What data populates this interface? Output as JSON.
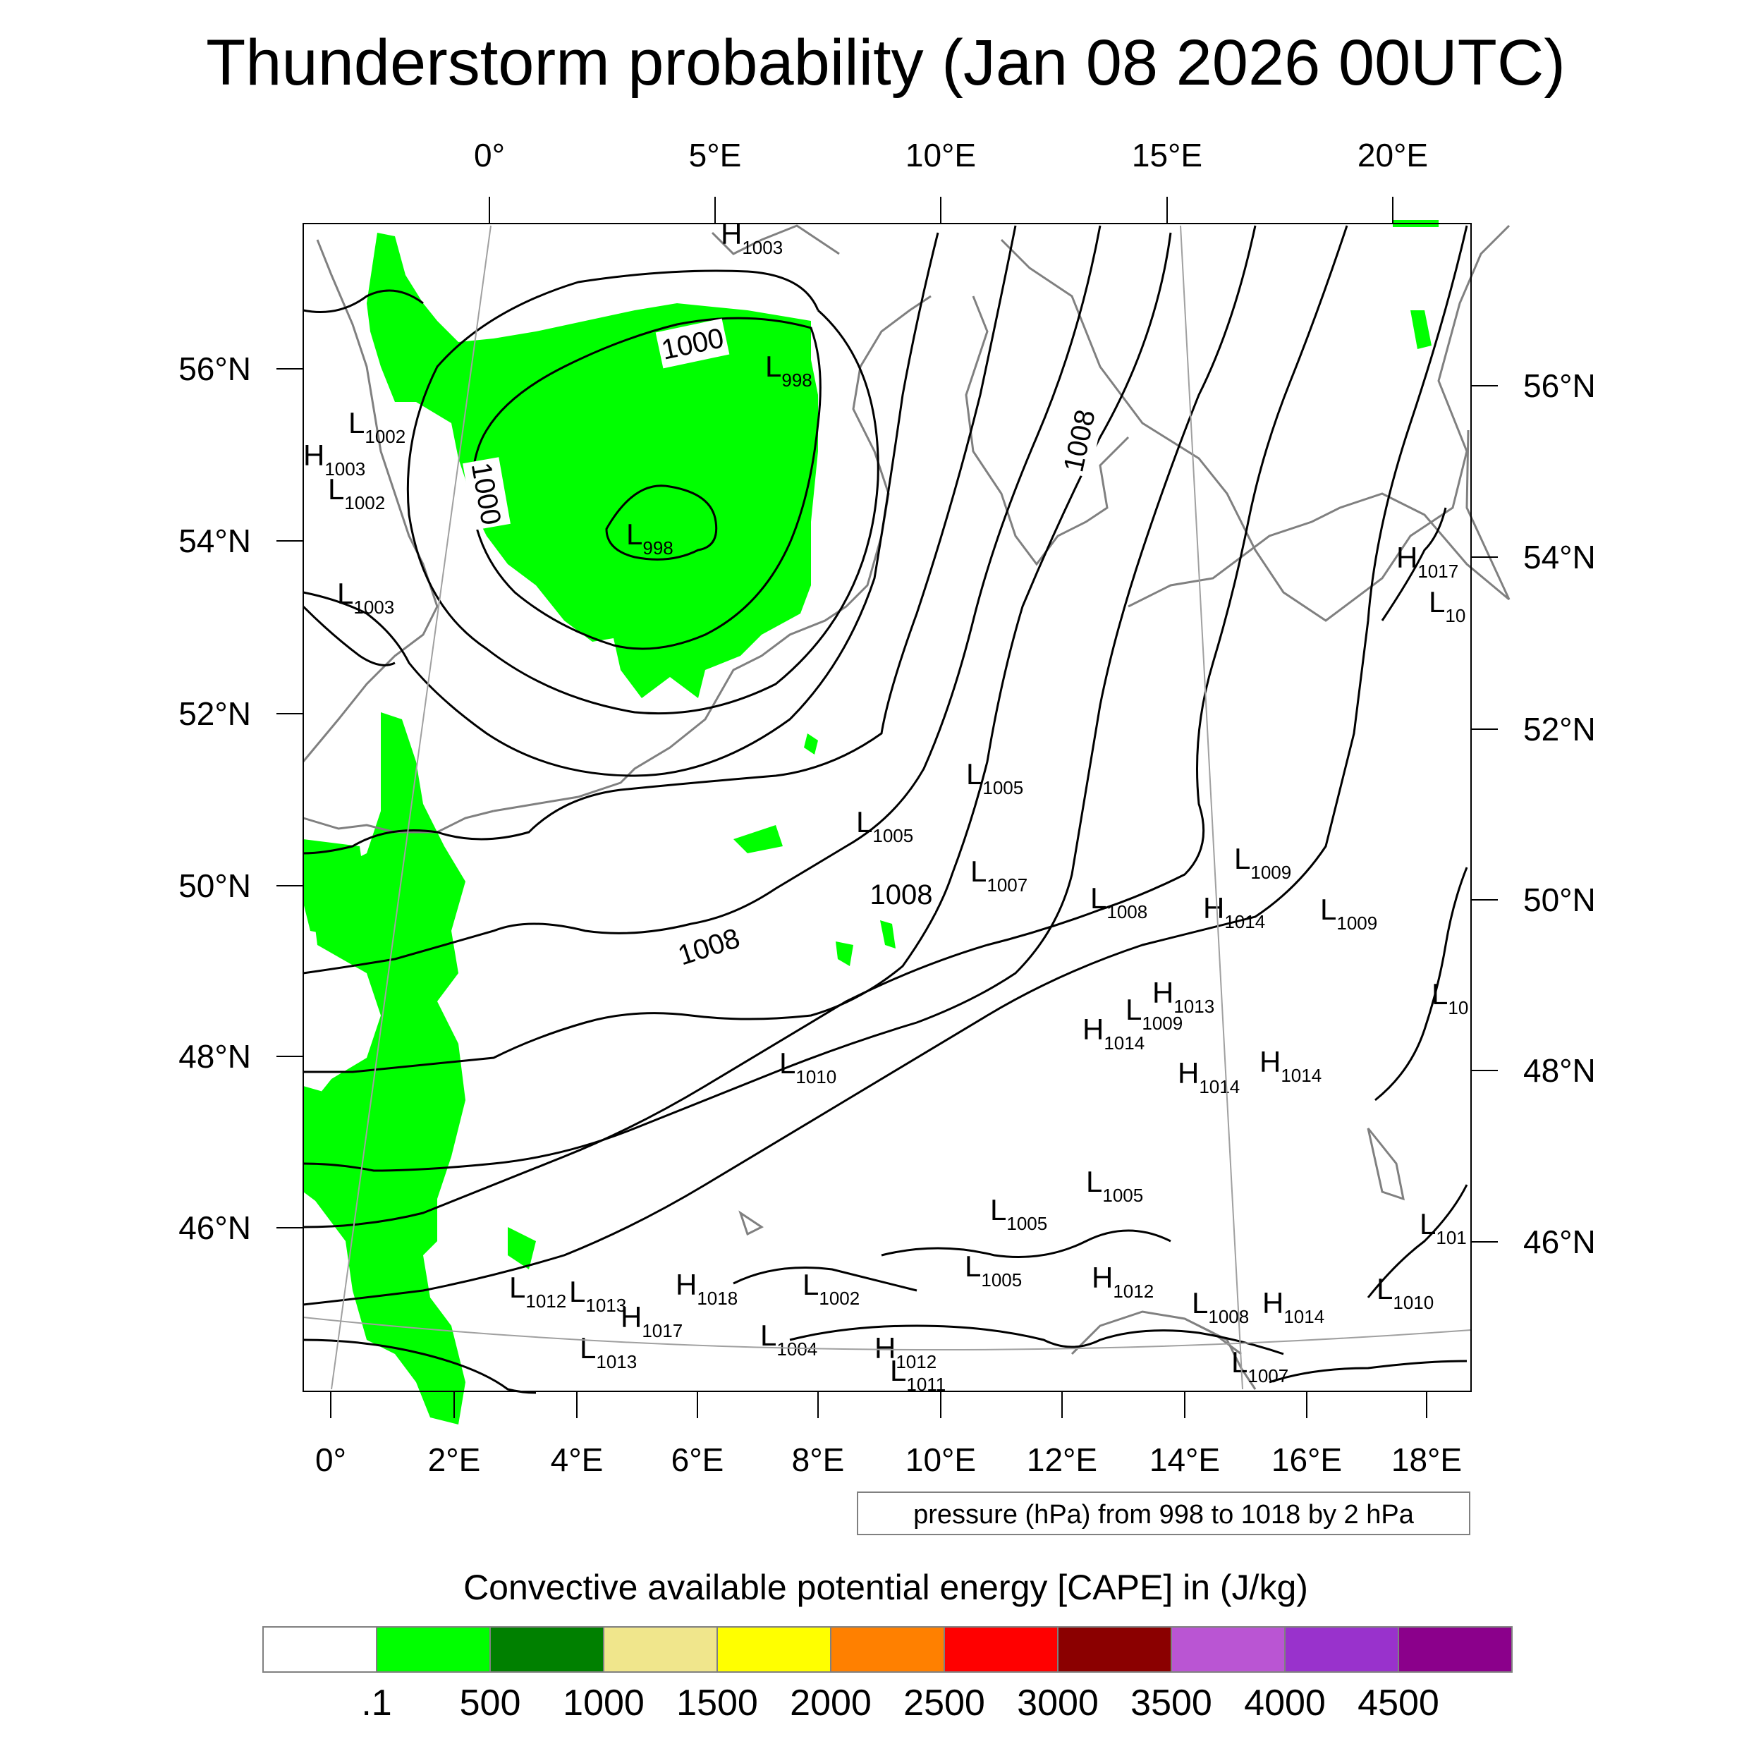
{
  "title": "Thunderstorm probability (Jan 08 2026 00UTC)",
  "top_lon_labels": [
    "0°",
    "5°E",
    "10°E",
    "15°E",
    "20°E"
  ],
  "bottom_lon_labels": [
    "0°",
    "2°E",
    "4°E",
    "6°E",
    "8°E",
    "10°E",
    "12°E",
    "14°E",
    "16°E",
    "18°E"
  ],
  "left_lat_labels": [
    "56°N",
    "54°N",
    "52°N",
    "50°N",
    "48°N",
    "46°N"
  ],
  "right_lat_labels": [
    "56°N",
    "54°N",
    "52°N",
    "50°N",
    "48°N",
    "46°N"
  ],
  "isobar_labels": [
    "1000",
    "1000",
    "1008",
    "1008",
    "1008"
  ],
  "pressure_centers": [
    {
      "t": "H",
      "v": "1003"
    },
    {
      "t": "L",
      "v": "998"
    },
    {
      "t": "L",
      "v": "1002"
    },
    {
      "t": "H",
      "v": "1003"
    },
    {
      "t": "L",
      "v": "1002"
    },
    {
      "t": "L",
      "v": "998"
    },
    {
      "t": "L",
      "v": "1003"
    },
    {
      "t": "H",
      "v": "1017"
    },
    {
      "t": "L",
      "v": "10"
    },
    {
      "t": "L",
      "v": "1005"
    },
    {
      "t": "L",
      "v": "1005"
    },
    {
      "t": "L",
      "v": "1007"
    },
    {
      "t": "L",
      "v": "1008"
    },
    {
      "t": "L",
      "v": "1009"
    },
    {
      "t": "H",
      "v": "1014"
    },
    {
      "t": "L",
      "v": "1009"
    },
    {
      "t": "H",
      "v": "1013"
    },
    {
      "t": "L",
      "v": "1009"
    },
    {
      "t": "H",
      "v": "1014"
    },
    {
      "t": "L",
      "v": "10"
    },
    {
      "t": "L",
      "v": "1010"
    },
    {
      "t": "H",
      "v": "1014"
    },
    {
      "t": "H",
      "v": "1014"
    },
    {
      "t": "L",
      "v": "1005"
    },
    {
      "t": "L",
      "v": "1005"
    },
    {
      "t": "L",
      "v": "1005"
    },
    {
      "t": "H",
      "v": "1012"
    },
    {
      "t": "L",
      "v": "101"
    },
    {
      "t": "L",
      "v": "1012"
    },
    {
      "t": "L",
      "v": "1013"
    },
    {
      "t": "H",
      "v": "1018"
    },
    {
      "t": "L",
      "v": "1002"
    },
    {
      "t": "H",
      "v": "1017"
    },
    {
      "t": "L",
      "v": "1004"
    },
    {
      "t": "L",
      "v": "1013"
    },
    {
      "t": "H",
      "v": "1012"
    },
    {
      "t": "L",
      "v": "1011"
    },
    {
      "t": "L",
      "v": "1008"
    },
    {
      "t": "H",
      "v": "1014"
    },
    {
      "t": "L",
      "v": "1010"
    },
    {
      "t": "L",
      "v": "1007"
    }
  ],
  "contour_note": "pressure (hPa) from 998 to 1018 by 2 hPa",
  "colorbar": {
    "title": "Convective available potential energy [CAPE] in (J/kg)",
    "colors": [
      "#ffffff",
      "#00ff00",
      "#008000",
      "#f0e68c",
      "#ffff00",
      "#ff8000",
      "#ff0000",
      "#8b0000",
      "#ba55d3",
      "#9932cc",
      "#8b008b"
    ],
    "labels": [
      ".1",
      "500",
      "1000",
      "1500",
      "2000",
      "2500",
      "3000",
      "3500",
      "4000",
      "4500"
    ]
  },
  "colors": {
    "cape_fill": "#00ff00",
    "isobar": "#000000",
    "coastline": "#808080",
    "graticule": "#a0a0a0"
  }
}
